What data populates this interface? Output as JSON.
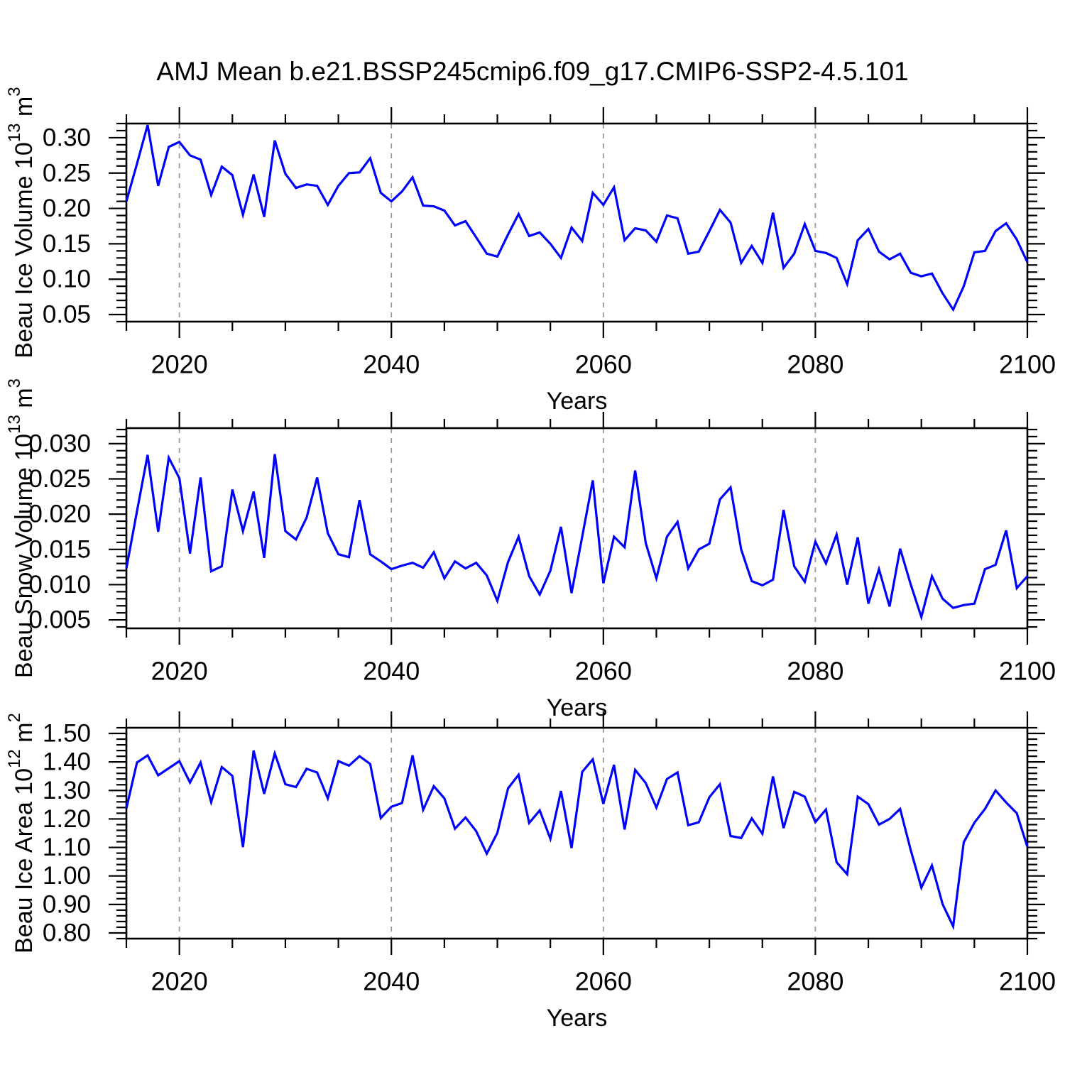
{
  "title": "AMJ Mean b.e21.BSSP245cmip6.f09_g17.CMIP6-SSP2-4.5.101",
  "figure": {
    "background": "#ffffff",
    "line_color": "#0000ff",
    "grid_color": "#9b9b9b",
    "axis_color": "#000000",
    "text_color": "#000000"
  },
  "x_axis": {
    "label": "Years",
    "range": [
      2015,
      2100
    ],
    "ticks": [
      2020,
      2040,
      2060,
      2080,
      2100
    ],
    "tick_labels": [
      "2020",
      "2040",
      "2060",
      "2080",
      "2100"
    ],
    "minor_step": 5,
    "gridlines": [
      2020,
      2040,
      2060,
      2080
    ]
  },
  "years": [
    2015,
    2016,
    2017,
    2018,
    2019,
    2020,
    2021,
    2022,
    2023,
    2024,
    2025,
    2026,
    2027,
    2028,
    2029,
    2030,
    2031,
    2032,
    2033,
    2034,
    2035,
    2036,
    2037,
    2038,
    2039,
    2040,
    2041,
    2042,
    2043,
    2044,
    2045,
    2046,
    2047,
    2048,
    2049,
    2050,
    2051,
    2052,
    2053,
    2054,
    2055,
    2056,
    2057,
    2058,
    2059,
    2060,
    2061,
    2062,
    2063,
    2064,
    2065,
    2066,
    2067,
    2068,
    2069,
    2070,
    2071,
    2072,
    2073,
    2074,
    2075,
    2076,
    2077,
    2078,
    2079,
    2080,
    2081,
    2082,
    2083,
    2084,
    2085,
    2086,
    2087,
    2088,
    2089,
    2090,
    2091,
    2092,
    2093,
    2094,
    2095,
    2096,
    2097,
    2098,
    2099,
    2100
  ],
  "chart_data": [
    {
      "type": "line",
      "name": "beau-ice-volume",
      "ylabel_plain": "Beau Ice Volume 10^13 m^3",
      "ylabel_parts": [
        [
          "Beau Ice Volume 10",
          false
        ],
        [
          "13",
          true
        ],
        [
          " m",
          false
        ],
        [
          "3",
          true
        ]
      ],
      "xlabel": "Years",
      "ylim": [
        0.04,
        0.32
      ],
      "yticks": [
        0.05,
        0.1,
        0.15,
        0.2,
        0.25,
        0.3
      ],
      "ytick_labels": [
        "0.05",
        "0.10",
        "0.15",
        "0.20",
        "0.25",
        "0.30"
      ],
      "y_minor_step": 0.01,
      "values": [
        0.21,
        0.263,
        0.318,
        0.232,
        0.287,
        0.294,
        0.275,
        0.269,
        0.219,
        0.259,
        0.247,
        0.191,
        0.248,
        0.188,
        0.296,
        0.249,
        0.229,
        0.234,
        0.232,
        0.205,
        0.232,
        0.25,
        0.251,
        0.271,
        0.222,
        0.21,
        0.224,
        0.244,
        0.204,
        0.203,
        0.197,
        0.176,
        0.182,
        0.159,
        0.136,
        0.132,
        0.163,
        0.192,
        0.161,
        0.166,
        0.15,
        0.13,
        0.173,
        0.154,
        0.222,
        0.205,
        0.23,
        0.155,
        0.172,
        0.169,
        0.153,
        0.19,
        0.186,
        0.136,
        0.139,
        0.168,
        0.198,
        0.18,
        0.123,
        0.147,
        0.123,
        0.194,
        0.116,
        0.136,
        0.178,
        0.14,
        0.137,
        0.13,
        0.093,
        0.155,
        0.171,
        0.139,
        0.128,
        0.136,
        0.109,
        0.104,
        0.108,
        0.08,
        0.057,
        0.09,
        0.138,
        0.14,
        0.168,
        0.179,
        0.156,
        0.124
      ]
    },
    {
      "type": "line",
      "name": "beau-snow-volume",
      "ylabel_plain": "Beau Snow Volume 10^13 m^3",
      "ylabel_parts": [
        [
          "Beau Snow Volume 10",
          false
        ],
        [
          "13",
          true
        ],
        [
          " m",
          false
        ],
        [
          "3",
          true
        ]
      ],
      "xlabel": "Years",
      "ylim": [
        0.0038,
        0.0322
      ],
      "yticks": [
        0.005,
        0.01,
        0.015,
        0.02,
        0.025,
        0.03
      ],
      "ytick_labels": [
        "0.005",
        "0.010",
        "0.015",
        "0.020",
        "0.025",
        "0.030"
      ],
      "y_minor_step": 0.001,
      "values": [
        0.0123,
        0.0204,
        0.0284,
        0.0175,
        0.028,
        0.0251,
        0.0144,
        0.0252,
        0.0119,
        0.0126,
        0.0235,
        0.0176,
        0.0232,
        0.0138,
        0.0285,
        0.0176,
        0.0164,
        0.0195,
        0.0252,
        0.0173,
        0.0143,
        0.0139,
        0.022,
        0.0143,
        0.0133,
        0.0122,
        0.0127,
        0.0131,
        0.0124,
        0.0146,
        0.0109,
        0.0133,
        0.0123,
        0.0131,
        0.0113,
        0.0077,
        0.0132,
        0.0168,
        0.0112,
        0.0086,
        0.012,
        0.0182,
        0.0088,
        0.0168,
        0.0248,
        0.0102,
        0.0168,
        0.0153,
        0.0262,
        0.0159,
        0.0109,
        0.0168,
        0.0189,
        0.0123,
        0.015,
        0.0158,
        0.0221,
        0.0238,
        0.015,
        0.0105,
        0.0099,
        0.0107,
        0.0206,
        0.0126,
        0.0104,
        0.0161,
        0.013,
        0.0171,
        0.01,
        0.0167,
        0.0073,
        0.0122,
        0.0069,
        0.0151,
        0.01,
        0.0054,
        0.0112,
        0.008,
        0.0067,
        0.0071,
        0.0073,
        0.0122,
        0.0128,
        0.0177,
        0.0095,
        0.0112
      ]
    },
    {
      "type": "line",
      "name": "beau-ice-area",
      "ylabel_plain": "Beau Ice Area 10^12 m^2",
      "ylabel_parts": [
        [
          "Beau Ice Area 10",
          false
        ],
        [
          "12",
          true
        ],
        [
          " m",
          false
        ],
        [
          "2",
          true
        ]
      ],
      "xlabel": "Years",
      "ylim": [
        0.78,
        1.52
      ],
      "yticks": [
        0.8,
        0.9,
        1.0,
        1.1,
        1.2,
        1.3,
        1.4,
        1.5
      ],
      "ytick_labels": [
        "0.80",
        "0.90",
        "1.00",
        "1.10",
        "1.20",
        "1.30",
        "1.40",
        "1.50"
      ],
      "y_minor_step": 0.02,
      "values": [
        1.237,
        1.398,
        1.423,
        1.353,
        1.378,
        1.403,
        1.328,
        1.398,
        1.259,
        1.382,
        1.351,
        1.101,
        1.44,
        1.288,
        1.43,
        1.322,
        1.312,
        1.376,
        1.363,
        1.272,
        1.403,
        1.387,
        1.42,
        1.393,
        1.203,
        1.243,
        1.256,
        1.423,
        1.232,
        1.315,
        1.272,
        1.166,
        1.205,
        1.157,
        1.078,
        1.151,
        1.307,
        1.355,
        1.186,
        1.23,
        1.13,
        1.298,
        1.098,
        1.365,
        1.409,
        1.253,
        1.39,
        1.163,
        1.372,
        1.326,
        1.24,
        1.34,
        1.363,
        1.178,
        1.188,
        1.276,
        1.322,
        1.14,
        1.133,
        1.202,
        1.148,
        1.349,
        1.168,
        1.295,
        1.278,
        1.189,
        1.233,
        1.048,
        1.006,
        1.278,
        1.252,
        1.18,
        1.2,
        1.235,
        1.09,
        0.959,
        1.037,
        0.901,
        0.823,
        1.118,
        1.187,
        1.235,
        1.3,
        1.258,
        1.22,
        1.102
      ]
    }
  ]
}
